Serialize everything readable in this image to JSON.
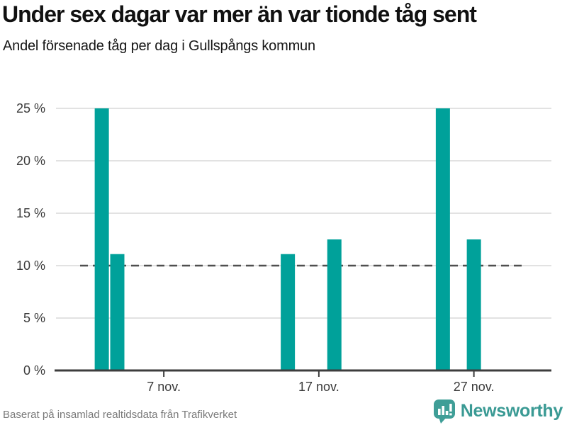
{
  "header": {
    "title": "Under sex dagar var mer än var tionde tåg sent",
    "subtitle": "Andel försenade tåg per dag i Gullspångs kommun"
  },
  "footer": {
    "source": "Baserat på insamlad realtidsdata från Trafikverket",
    "brand": "Newsworthy"
  },
  "colors": {
    "bar": "#00a19a",
    "axis": "#3d3d3d",
    "grid": "#e2e2e2",
    "reference_line": "#4f4f4f",
    "tick_text": "#3a3a3a",
    "footer_text": "#7a7a7a",
    "brand_teal": "#3f9e97"
  },
  "chart_data": {
    "type": "bar",
    "title": "Under sex dagar var mer än var tionde tåg sent",
    "subtitle": "Andel försenade tåg per dag i Gullspångs kommun",
    "xlabel": "",
    "ylabel": "",
    "unit": "%",
    "ylim": [
      0,
      25
    ],
    "xlim_days": [
      0,
      32
    ],
    "grid": true,
    "legend": false,
    "points": [
      {
        "day": 3,
        "date_label": "3 nov.",
        "value": 25
      },
      {
        "day": 4,
        "date_label": "4 nov.",
        "value": 11.1
      },
      {
        "day": 15,
        "date_label": "15 nov.",
        "value": 11.1
      },
      {
        "day": 18,
        "date_label": "18 nov.",
        "value": 12.5
      },
      {
        "day": 25,
        "date_label": "25 nov.",
        "value": 25
      },
      {
        "day": 27,
        "date_label": "27 nov.",
        "value": 12.5
      }
    ],
    "y_ticks": [
      {
        "value": 0,
        "label": "0 %"
      },
      {
        "value": 5,
        "label": "5 %"
      },
      {
        "value": 10,
        "label": "10 %"
      },
      {
        "value": 15,
        "label": "15 %"
      },
      {
        "value": 20,
        "label": "20 %"
      },
      {
        "value": 25,
        "label": "25 %"
      }
    ],
    "x_ticks": [
      {
        "day": 7,
        "label": "7 nov."
      },
      {
        "day": 17,
        "label": "17 nov."
      },
      {
        "day": 27,
        "label": "27 nov."
      }
    ],
    "reference_line": {
      "value": 10,
      "style": "dashed",
      "span_frac": [
        0.05,
        0.95
      ]
    }
  }
}
